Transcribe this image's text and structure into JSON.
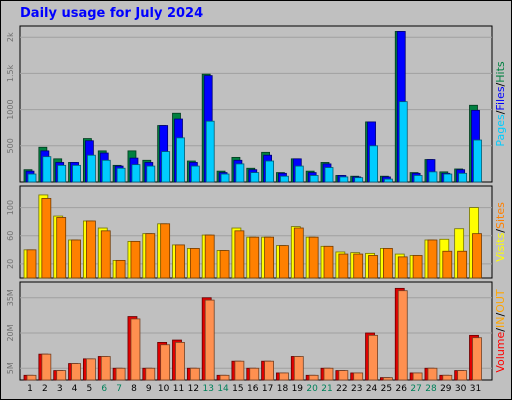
{
  "chart_data": {
    "title": "Daily usage for July 2024",
    "x": [
      "1",
      "2",
      "3",
      "4",
      "5",
      "6",
      "7",
      "8",
      "9",
      "10",
      "11",
      "12",
      "13",
      "14",
      "15",
      "16",
      "17",
      "18",
      "19",
      "20",
      "21",
      "22",
      "23",
      "24",
      "25",
      "26",
      "27",
      "28",
      "29",
      "30",
      "31"
    ],
    "weekend_days": [
      "6",
      "7",
      "13",
      "14",
      "20",
      "21",
      "27",
      "28"
    ],
    "panels": [
      {
        "type": "bar",
        "ticks": [
          "2k",
          "1.5k",
          "1000",
          "500"
        ],
        "ylim": [
          0,
          2100
        ],
        "tick_values": [
          2000,
          1500,
          1000,
          500
        ],
        "side_label": [
          "Pages",
          "/",
          "Files",
          "/",
          "Hits"
        ],
        "side_label_colors": [
          "#00ccff",
          "#000000",
          "#0000ff",
          "#000000",
          "#008040"
        ],
        "series": [
          {
            "name": "Hits",
            "color": "#008040",
            "values": [
              170,
              480,
              320,
              270,
              600,
              430,
              230,
              430,
              300,
              780,
              950,
              290,
              1490,
              150,
              340,
              190,
              410,
              130,
              320,
              150,
              270,
              90,
              80,
              830,
              80,
              2080,
              130,
              310,
              140,
              180,
              1060
            ]
          },
          {
            "name": "Files",
            "color": "#0000ff",
            "values": [
              150,
              430,
              270,
              270,
              570,
              400,
              220,
              330,
              270,
              780,
              870,
              270,
              1470,
              130,
              300,
              170,
              370,
              120,
              320,
              130,
              250,
              90,
              70,
              830,
              70,
              2080,
              120,
              310,
              120,
              170,
              990
            ]
          },
          {
            "name": "Pages",
            "color": "#00ccff",
            "values": [
              110,
              350,
              230,
              230,
              370,
              300,
              190,
              240,
              220,
              420,
              610,
              220,
              840,
              110,
              250,
              130,
              290,
              80,
              220,
              90,
              200,
              70,
              60,
              500,
              40,
              1110,
              90,
              140,
              110,
              120,
              580
            ]
          }
        ]
      },
      {
        "type": "bar",
        "ticks": [
          "100",
          "60",
          "20"
        ],
        "ylim": [
          0,
          125
        ],
        "tick_values": [
          100,
          60,
          20
        ],
        "side_label": [
          "Visits",
          "/",
          "Sites"
        ],
        "side_label_colors": [
          "#ffff00",
          "#000000",
          "#ff8000"
        ],
        "series": [
          {
            "name": "Visits",
            "color": "#ffff00",
            "values": [
              40,
              118,
              88,
              54,
              81,
              71,
              25,
              52,
              63,
              77,
              47,
              42,
              61,
              39,
              71,
              58,
              58,
              46,
              73,
              58,
              45,
              37,
              36,
              35,
              42,
              34,
              32,
              54,
              55,
              70,
              100
            ]
          },
          {
            "name": "Sites",
            "color": "#ff8000",
            "values": [
              40,
              113,
              86,
              54,
              81,
              67,
              25,
              52,
              63,
              77,
              47,
              42,
              61,
              39,
              67,
              58,
              58,
              46,
              71,
              58,
              45,
              34,
              34,
              32,
              42,
              30,
              32,
              54,
              38,
              38,
              63
            ]
          }
        ]
      },
      {
        "type": "bar",
        "ticks": [
          "35M",
          "20M",
          "5M"
        ],
        "ylim": [
          0,
          40
        ],
        "tick_values": [
          35,
          20,
          5
        ],
        "side_label": [
          "Volume",
          "/",
          "IN",
          "/",
          "OUT"
        ],
        "side_label_colors": [
          "#ff0000",
          "#000000",
          "#ffa500",
          "#000000",
          "#ffa500"
        ],
        "series": [
          {
            "name": "Volume",
            "color": "#e00000",
            "values": [
              2,
              11,
              4,
              7,
              9,
              10,
              5,
              27,
              5,
              16,
              17,
              5,
              35,
              2,
              8,
              5,
              8,
              3,
              10,
              2,
              5,
              4,
              3,
              20,
              1,
              39,
              3,
              5,
              2,
              4,
              19
            ]
          },
          {
            "name": "OUT",
            "color": "#ff9050",
            "values": [
              2,
              11,
              4,
              7,
              9,
              10,
              5,
              26,
              5,
              15,
              16,
              5,
              34,
              2,
              8,
              5,
              8,
              3,
              10,
              2,
              5,
              4,
              3,
              19,
              1,
              38,
              3,
              5,
              2,
              4,
              18
            ]
          }
        ]
      }
    ]
  }
}
